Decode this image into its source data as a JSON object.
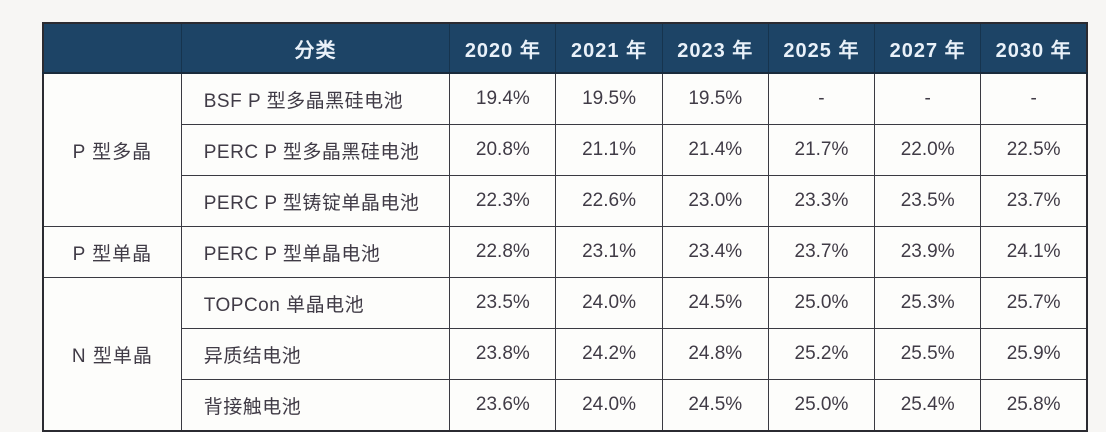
{
  "chart_data": {
    "type": "table",
    "title": "",
    "header": {
      "group_label": "",
      "category_label": "分类",
      "years": [
        "2020 年",
        "2021 年",
        "2023 年",
        "2025 年",
        "2027 年",
        "2030 年"
      ]
    },
    "groups": [
      {
        "name": "P 型多晶",
        "rows": [
          {
            "category": "BSF P 型多晶黑硅电池",
            "values": [
              "19.4%",
              "19.5%",
              "19.5%",
              "-",
              "-",
              "-"
            ]
          },
          {
            "category": "PERC P 型多晶黑硅电池",
            "values": [
              "20.8%",
              "21.1%",
              "21.4%",
              "21.7%",
              "22.0%",
              "22.5%"
            ]
          },
          {
            "category": "PERC P 型铸锭单晶电池",
            "values": [
              "22.3%",
              "22.6%",
              "23.0%",
              "23.3%",
              "23.5%",
              "23.7%"
            ]
          }
        ]
      },
      {
        "name": "P 型单晶",
        "rows": [
          {
            "category": "PERC P 型单晶电池",
            "values": [
              "22.8%",
              "23.1%",
              "23.4%",
              "23.7%",
              "23.9%",
              "24.1%"
            ]
          }
        ]
      },
      {
        "name": "N 型单晶",
        "rows": [
          {
            "category": "TOPCon 单晶电池",
            "values": [
              "23.5%",
              "24.0%",
              "24.5%",
              "25.0%",
              "25.3%",
              "25.7%"
            ]
          },
          {
            "category": "异质结电池",
            "values": [
              "23.8%",
              "24.2%",
              "24.8%",
              "25.2%",
              "25.5%",
              "25.9%"
            ]
          },
          {
            "category": "背接触电池",
            "values": [
              "23.6%",
              "24.0%",
              "24.5%",
              "25.0%",
              "25.4%",
              "25.8%"
            ]
          }
        ]
      }
    ]
  },
  "colors": {
    "header_bg": "#1d4466",
    "header_text": "#e9f1f9",
    "body_text": "#403b46",
    "grid_border": "#3a3a42",
    "outer_border": "#2b2b31",
    "cell_bg": "#fdfdfb",
    "page_bg": "#f7f6f4"
  }
}
